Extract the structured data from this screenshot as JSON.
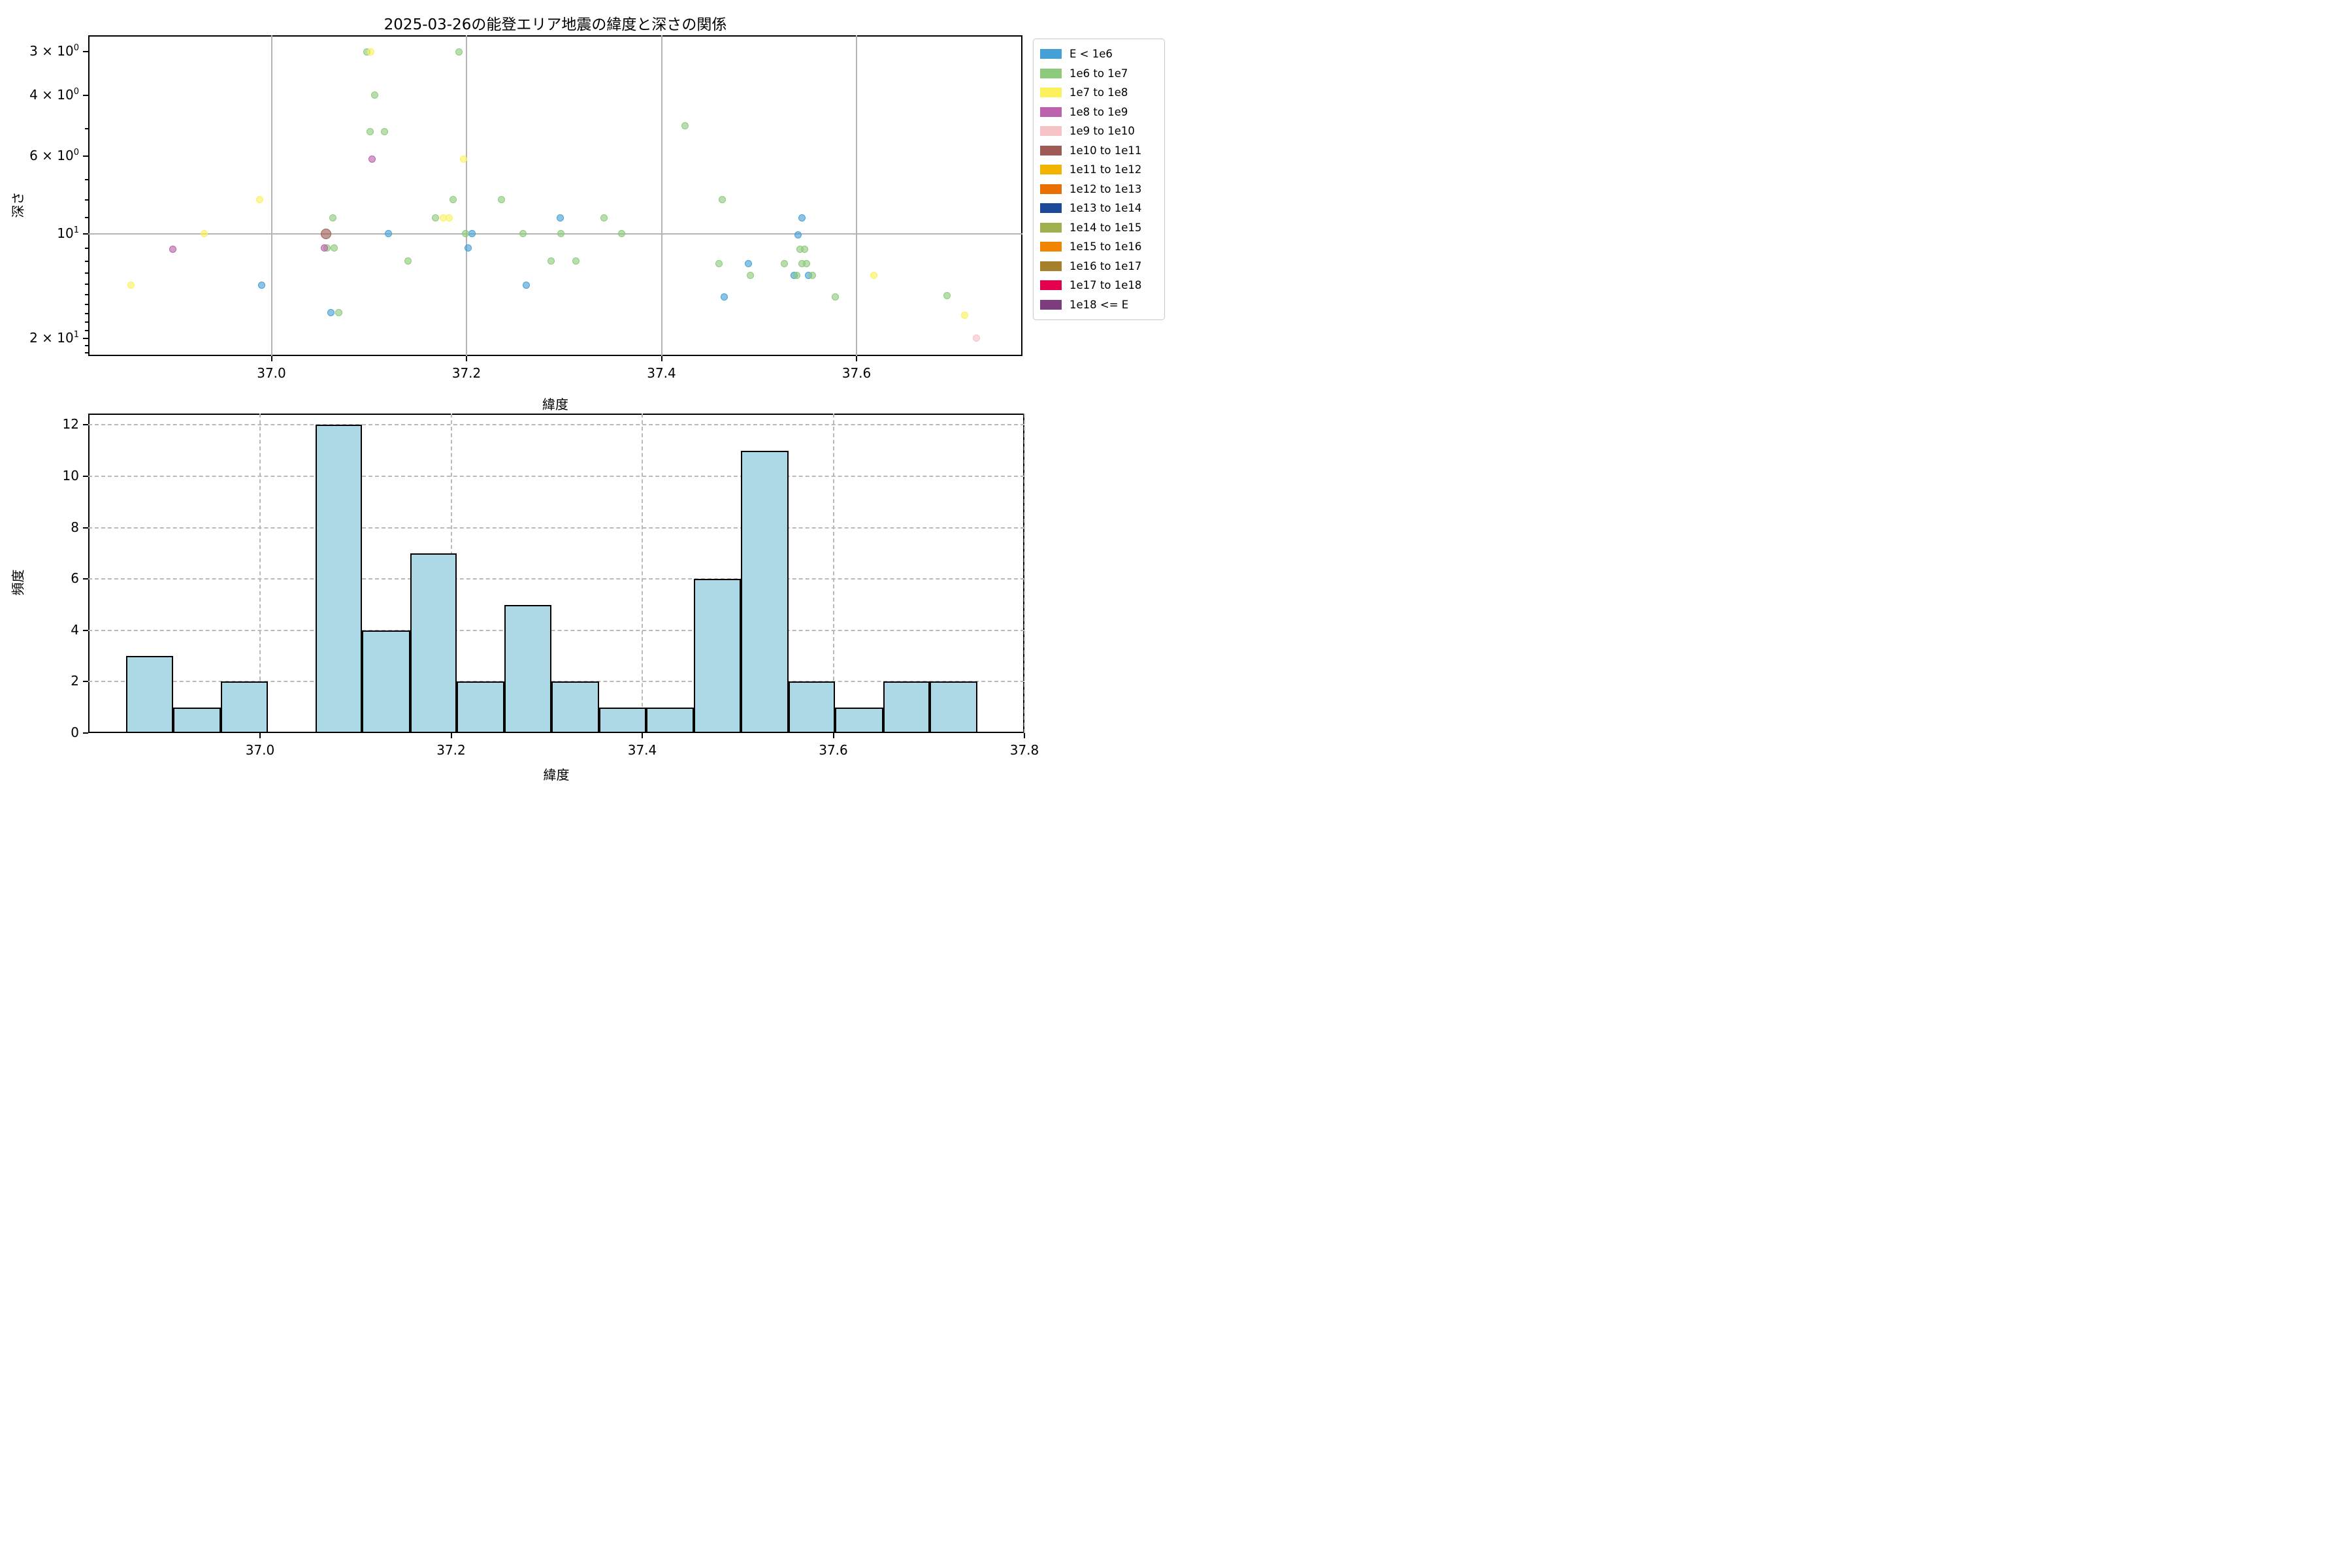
{
  "title": "2025-03-26の能登エリア地震の緯度と深さの関係",
  "scatter": {
    "xlabel": "緯度",
    "ylabel": "深さ",
    "xlim": [
      36.812,
      37.77
    ],
    "ylim_depth": [
      2.68,
      22.5
    ],
    "x_ticks": [
      37.0,
      37.2,
      37.4,
      37.6
    ],
    "y_ticks": [
      {
        "value": 3,
        "text": "3 × 10",
        "exp": "0"
      },
      {
        "value": 4,
        "text": "4 × 10",
        "exp": "0"
      },
      {
        "value": 6,
        "text": "6 × 10",
        "exp": "0"
      },
      {
        "value": 10,
        "text": "10",
        "exp": "1"
      },
      {
        "value": 20,
        "text": "2 × 10",
        "exp": "1"
      }
    ],
    "y_minor_ticks": [
      5,
      7,
      8,
      9,
      11,
      12,
      13,
      14,
      15,
      16,
      17,
      18,
      19,
      21,
      22
    ],
    "grid_x": [
      37.0,
      37.2,
      37.4,
      37.6
    ],
    "grid_y_depth": [
      10
    ]
  },
  "histogram": {
    "xlabel": "緯度",
    "ylabel": "頻度",
    "xlim": [
      36.82,
      37.8
    ],
    "ylim": [
      0,
      12.45
    ],
    "x_ticks": [
      37.0,
      37.2,
      37.4,
      37.6,
      37.8
    ],
    "y_ticks": [
      0,
      2,
      4,
      6,
      8,
      10,
      12
    ],
    "bar_color": "#ADD8E6",
    "bar_edge_color": "#000000"
  },
  "legend": {
    "entries": [
      {
        "label": "E < 1e6",
        "color": "#45A0D6"
      },
      {
        "label": "1e6 to 1e7",
        "color": "#8DCA7B"
      },
      {
        "label": "1e7 to 1e8",
        "color": "#FBF15C"
      },
      {
        "label": "1e8 to 1e9",
        "color": "#BC61AC"
      },
      {
        "label": "1e9 to 1e10",
        "color": "#F5C2C6"
      },
      {
        "label": "1e10 to 1e11",
        "color": "#9E5B56"
      },
      {
        "label": "1e11 to 1e12",
        "color": "#F2B300"
      },
      {
        "label": "1e12 to 1e13",
        "color": "#E86F00"
      },
      {
        "label": "1e13 to 1e14",
        "color": "#1C4A99"
      },
      {
        "label": "1e14 to 1e15",
        "color": "#9FB14F"
      },
      {
        "label": "1e15 to 1e16",
        "color": "#F18400"
      },
      {
        "label": "1e16 to 1e17",
        "color": "#A5812C"
      },
      {
        "label": "1e17 to 1e18",
        "color": "#E4004E"
      },
      {
        "label": "1e18 <= E",
        "color": "#7D3C7E"
      }
    ]
  },
  "chart_data": [
    {
      "type": "scatter",
      "title": "2025-03-26の能登エリア地震の緯度と深さの関係",
      "xlabel": "緯度",
      "ylabel": "深さ",
      "y_scale": "log-inverted",
      "series": [
        {
          "name": "E < 1e6",
          "color": "#45A0D6",
          "points": [
            [
              36.99,
              14.1
            ],
            [
              37.061,
              16.9
            ],
            [
              37.12,
              10.0
            ],
            [
              37.202,
              11.0
            ],
            [
              37.206,
              10.0
            ],
            [
              37.261,
              14.1
            ],
            [
              37.296,
              9.0
            ],
            [
              37.464,
              15.2
            ],
            [
              37.489,
              12.2
            ],
            [
              37.536,
              13.2
            ],
            [
              37.54,
              10.1
            ],
            [
              37.544,
              9.0
            ],
            [
              37.551,
              13.2
            ]
          ]
        },
        {
          "name": "1e6 to 1e7",
          "color": "#8DCA7B",
          "points": [
            [
              37.098,
              3.0
            ],
            [
              37.192,
              3.0
            ],
            [
              37.106,
              4.0
            ],
            [
              37.424,
              4.9
            ],
            [
              37.101,
              5.1
            ],
            [
              37.116,
              5.1
            ],
            [
              37.186,
              8.0
            ],
            [
              37.236,
              8.0
            ],
            [
              37.462,
              8.0
            ],
            [
              37.063,
              9.0
            ],
            [
              37.168,
              9.0
            ],
            [
              37.341,
              9.0
            ],
            [
              37.199,
              10.0
            ],
            [
              37.258,
              10.0
            ],
            [
              37.297,
              10.0
            ],
            [
              37.359,
              10.0
            ],
            [
              37.057,
              11.0
            ],
            [
              37.064,
              11.0
            ],
            [
              37.542,
              11.1
            ],
            [
              37.547,
              11.1
            ],
            [
              37.14,
              12.0
            ],
            [
              37.287,
              12.0
            ],
            [
              37.312,
              12.0
            ],
            [
              37.459,
              12.2
            ],
            [
              37.526,
              12.2
            ],
            [
              37.544,
              12.2
            ],
            [
              37.549,
              12.2
            ],
            [
              37.491,
              13.2
            ],
            [
              37.539,
              13.2
            ],
            [
              37.555,
              13.2
            ],
            [
              37.578,
              15.2
            ],
            [
              37.693,
              15.1
            ],
            [
              37.069,
              16.9
            ]
          ]
        },
        {
          "name": "1e7 to 1e8",
          "color": "#FBF15C",
          "points": [
            [
              37.102,
              3.0
            ],
            [
              37.197,
              6.1
            ],
            [
              36.988,
              8.0
            ],
            [
              37.176,
              9.0
            ],
            [
              37.182,
              9.0
            ],
            [
              36.931,
              10.0
            ],
            [
              36.856,
              14.1
            ],
            [
              37.618,
              13.2
            ],
            [
              37.711,
              17.2
            ]
          ]
        },
        {
          "name": "1e8 to 1e9",
          "color": "#BC61AC",
          "points": [
            [
              37.103,
              6.1
            ],
            [
              36.899,
              11.1
            ],
            [
              37.054,
              11.0
            ]
          ]
        },
        {
          "name": "1e9 to 1e10",
          "color": "#F5C2C6",
          "points": [
            [
              37.723,
              20.0
            ]
          ]
        },
        {
          "name": "1e10 to 1e11",
          "color": "#9E5B56",
          "big": true,
          "points": [
            [
              37.056,
              10.0
            ]
          ]
        }
      ]
    },
    {
      "type": "bar",
      "subtype": "histogram",
      "xlabel": "緯度",
      "ylabel": "頻度",
      "bin_edges": [
        36.86,
        36.909,
        36.959,
        37.008,
        37.058,
        37.107,
        37.157,
        37.206,
        37.256,
        37.305,
        37.355,
        37.404,
        37.454,
        37.503,
        37.553,
        37.602,
        37.652,
        37.701,
        37.751
      ],
      "counts": [
        3,
        1,
        2,
        0,
        12,
        4,
        7,
        2,
        5,
        2,
        1,
        1,
        6,
        11,
        2,
        1,
        2,
        2
      ],
      "ylim": [
        0,
        12.45
      ]
    }
  ]
}
